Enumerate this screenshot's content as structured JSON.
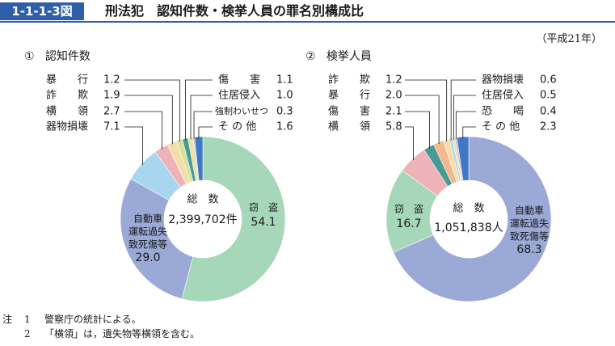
{
  "header": {
    "figure_number": "1-1-1-3図",
    "title": "刑法犯　認知件数・検挙人員の罪名別構成比",
    "era_note": "（平成21年）"
  },
  "panels": [
    {
      "heading_num": "①",
      "heading_label": "認知件数"
    },
    {
      "heading_num": "②",
      "heading_label": "検挙人員"
    }
  ],
  "notes": {
    "prefix": "注",
    "items": [
      {
        "num": "1",
        "text": "警察庁の統計による。"
      },
      {
        "num": "2",
        "text": "「横領」は，遺失物等横領を含む。"
      }
    ]
  },
  "chart_data": [
    {
      "type": "pie",
      "variant": "donut",
      "title": "認知件数",
      "center_label": "総　数",
      "center_value": "2,399,702件",
      "unit": "%",
      "start": "12 o'clock, clockwise",
      "slices": [
        {
          "name": "窃盗",
          "label": "窃　盗",
          "value": 54.1,
          "color": "#a7d7b9"
        },
        {
          "name": "自動車運転過失致死傷等",
          "label_lines": [
            "自動車",
            "運転過失",
            "致死傷等"
          ],
          "value": 29.0,
          "color": "#9aa9d6"
        },
        {
          "name": "器物損壊",
          "label": "器物損壊",
          "value": 7.1,
          "color": "#a8d6ee"
        },
        {
          "name": "横領",
          "label": "横　　領",
          "value": 2.7,
          "color": "#eeb3b9"
        },
        {
          "name": "詐欺",
          "label": "詐　　欺",
          "value": 1.9,
          "color": "#f6dca8"
        },
        {
          "name": "暴行",
          "label": "暴　　行",
          "value": 1.2,
          "color": "#d4e39a"
        },
        {
          "name": "傷害",
          "label": "傷　　害",
          "value": 1.1,
          "color": "#4a9a94"
        },
        {
          "name": "住居侵入",
          "label": "住居侵入",
          "value": 1.0,
          "color": "#e9e4a3"
        },
        {
          "name": "強制わいせつ",
          "label": "強制わいせつ",
          "value": 0.3,
          "color": "#c6b3da"
        },
        {
          "name": "その他",
          "label": "そ の 他",
          "value": 1.6,
          "color": "#3d78c4"
        }
      ]
    },
    {
      "type": "pie",
      "variant": "donut",
      "title": "検挙人員",
      "center_label": "総　数",
      "center_value": "1,051,838人",
      "unit": "%",
      "start": "12 o'clock, clockwise",
      "slices": [
        {
          "name": "自動車運転過失致死傷等",
          "label_lines": [
            "自動車",
            "運転過失",
            "致死傷等"
          ],
          "value": 68.3,
          "color": "#9aa9d6"
        },
        {
          "name": "窃盗",
          "label": "窃　盗",
          "value": 16.7,
          "color": "#a7d7b9"
        },
        {
          "name": "横領",
          "label": "横　　領",
          "value": 5.8,
          "color": "#eeb3b9"
        },
        {
          "name": "傷害",
          "label": "傷　　害",
          "value": 2.1,
          "color": "#4a9a94"
        },
        {
          "name": "暴行",
          "label": "暴　　行",
          "value": 2.0,
          "color": "#f3b98c"
        },
        {
          "name": "詐欺",
          "label": "詐　　欺",
          "value": 1.2,
          "color": "#f6dca8"
        },
        {
          "name": "器物損壊",
          "label": "器物損壊",
          "value": 0.6,
          "color": "#a8d6ee"
        },
        {
          "name": "住居侵入",
          "label": "住居侵入",
          "value": 0.5,
          "color": "#e9e4a3"
        },
        {
          "name": "恐喝",
          "label": "恐　　喝",
          "value": 0.4,
          "color": "#c6b3da"
        },
        {
          "name": "その他",
          "label": "そ の 他",
          "value": 2.3,
          "color": "#3d78c4"
        }
      ]
    }
  ]
}
